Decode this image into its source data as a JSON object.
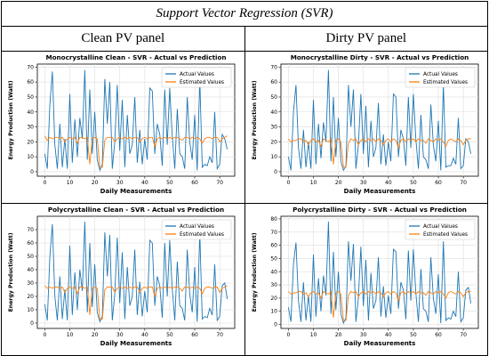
{
  "page": {
    "title": "Support Vector Regression (SVR)",
    "col_headers": [
      "Clean PV panel",
      "Dirty PV panel"
    ]
  },
  "colors": {
    "actual": "#1f77b4",
    "estimated": "#ff7f0e",
    "grid": "#dddddd"
  },
  "chart_data": [
    {
      "type": "line",
      "title": "Monocrystalline Clean  - SVR - Actual vs Prediction",
      "xlabel": "Daily Measurements",
      "ylabel": "Energy Production (Watt)",
      "xlim": [
        -3,
        76
      ],
      "ylim": [
        -3,
        72
      ],
      "xticks": [
        0,
        10,
        20,
        30,
        40,
        50,
        60,
        70
      ],
      "yticks": [
        0,
        10,
        20,
        30,
        40,
        50,
        60,
        70
      ],
      "grid": true,
      "legend": "top-right",
      "series": [
        {
          "name": "Actual Values",
          "values": [
            12,
            2,
            45,
            67,
            18,
            2,
            32,
            3,
            22,
            2,
            52,
            6,
            35,
            10,
            36,
            22,
            68,
            8,
            55,
            12,
            40,
            8,
            1,
            5,
            62,
            32,
            60,
            2,
            20,
            58,
            14,
            48,
            3,
            38,
            12,
            18,
            50,
            6,
            28,
            5,
            22,
            8,
            56,
            54,
            12,
            32,
            25,
            4,
            55,
            18,
            56,
            24,
            2,
            42,
            12,
            10,
            2,
            50,
            20,
            8,
            38,
            1,
            62,
            3,
            5,
            4,
            10,
            6,
            40,
            2,
            5,
            25,
            22,
            15
          ]
        },
        {
          "name": "Estimated Values",
          "values": [
            24,
            21,
            23,
            22,
            23,
            23,
            22,
            23,
            20,
            22,
            23,
            22,
            23,
            19,
            23,
            23,
            22,
            23,
            5,
            22,
            23,
            22,
            3,
            3,
            21,
            23,
            23,
            23,
            20,
            22,
            23,
            22,
            23,
            22,
            23,
            22,
            23,
            23,
            20,
            22,
            23,
            22,
            23,
            23,
            17,
            22,
            23,
            22,
            23,
            22,
            23,
            22,
            23,
            23,
            22,
            21,
            23,
            23,
            22,
            23,
            22,
            23,
            22,
            19,
            22,
            23,
            23,
            22,
            23,
            23,
            20,
            22,
            23,
            24
          ]
        }
      ]
    },
    {
      "type": "line",
      "title": "Monocrystalline Dirty - SVR - Actual vs Prediction",
      "xlabel": "Daily Measurements",
      "ylabel": "Energy Production (Watt)",
      "xlim": [
        -3,
        76
      ],
      "ylim": [
        -3,
        72
      ],
      "xticks": [
        0,
        10,
        20,
        30,
        40,
        50,
        60,
        70
      ],
      "yticks": [
        0,
        10,
        20,
        30,
        40,
        50,
        60,
        70
      ],
      "grid": true,
      "legend": "top-right",
      "series": [
        {
          "name": "Actual Values",
          "values": [
            10,
            1,
            40,
            58,
            16,
            2,
            28,
            3,
            20,
            2,
            48,
            5,
            32,
            9,
            33,
            20,
            68,
            7,
            50,
            10,
            36,
            7,
            1,
            4,
            58,
            30,
            55,
            2,
            18,
            52,
            12,
            44,
            3,
            34,
            10,
            16,
            46,
            5,
            25,
            4,
            20,
            7,
            52,
            50,
            10,
            28,
            22,
            4,
            50,
            16,
            52,
            22,
            2,
            38,
            10,
            8,
            2,
            45,
            18,
            7,
            34,
            1,
            58,
            3,
            4,
            4,
            9,
            5,
            36,
            2,
            4,
            22,
            20,
            12
          ]
        },
        {
          "name": "Estimated Values",
          "values": [
            22,
            20,
            21,
            21,
            22,
            22,
            20,
            21,
            18,
            21,
            22,
            20,
            21,
            17,
            22,
            21,
            20,
            22,
            5,
            21,
            22,
            20,
            3,
            3,
            19,
            22,
            21,
            22,
            18,
            21,
            22,
            20,
            22,
            21,
            22,
            20,
            22,
            21,
            18,
            21,
            22,
            20,
            22,
            21,
            16,
            21,
            22,
            20,
            22,
            21,
            22,
            20,
            22,
            21,
            21,
            19,
            22,
            21,
            20,
            22,
            21,
            22,
            20,
            17,
            21,
            22,
            21,
            20,
            22,
            21,
            18,
            21,
            22,
            22
          ]
        }
      ]
    },
    {
      "type": "line",
      "title": "Polycrystalline Clean - SVR - Actual vs Prediction",
      "xlabel": "Daily Measurements",
      "ylabel": "Energy Production (Watt)",
      "xlim": [
        -3,
        76
      ],
      "ylim": [
        -4,
        80
      ],
      "xticks": [
        0,
        10,
        20,
        30,
        40,
        50,
        60,
        70
      ],
      "yticks": [
        0,
        10,
        20,
        30,
        40,
        50,
        60,
        70
      ],
      "grid": true,
      "legend": "top-right",
      "series": [
        {
          "name": "Actual Values",
          "values": [
            14,
            2,
            50,
            74,
            20,
            2,
            35,
            3,
            25,
            2,
            58,
            6,
            38,
            10,
            40,
            24,
            76,
            8,
            60,
            12,
            44,
            8,
            1,
            5,
            68,
            35,
            66,
            2,
            22,
            64,
            15,
            53,
            3,
            42,
            13,
            20,
            55,
            6,
            31,
            5,
            24,
            8,
            62,
            60,
            13,
            35,
            28,
            4,
            60,
            20,
            62,
            26,
            2,
            46,
            13,
            11,
            2,
            55,
            22,
            8,
            42,
            1,
            68,
            3,
            5,
            4,
            11,
            6,
            44,
            2,
            5,
            28,
            30,
            18
          ]
        },
        {
          "name": "Estimated Values",
          "values": [
            28,
            26,
            27,
            26,
            27,
            27,
            26,
            27,
            23,
            26,
            27,
            26,
            27,
            22,
            27,
            27,
            26,
            27,
            6,
            26,
            27,
            26,
            3,
            3,
            25,
            27,
            27,
            27,
            23,
            26,
            27,
            26,
            27,
            26,
            27,
            26,
            27,
            27,
            23,
            26,
            27,
            26,
            27,
            27,
            20,
            26,
            27,
            26,
            27,
            26,
            27,
            26,
            27,
            27,
            26,
            24,
            27,
            27,
            26,
            27,
            26,
            27,
            26,
            22,
            26,
            27,
            27,
            26,
            27,
            27,
            23,
            26,
            27,
            28
          ]
        }
      ]
    },
    {
      "type": "line",
      "title": "Polycrystalline Dirty - SVR - Actual vs Prediction",
      "xlabel": "Daily Measurements",
      "ylabel": "Energy Production (Watt)",
      "xlim": [
        -3,
        76
      ],
      "ylim": [
        -3,
        82
      ],
      "xticks": [
        0,
        10,
        20,
        30,
        40,
        50,
        60,
        70
      ],
      "yticks": [
        0,
        10,
        20,
        30,
        40,
        50,
        60,
        70,
        80
      ],
      "grid": true,
      "legend": "top-right",
      "series": [
        {
          "name": "Actual Values",
          "values": [
            13,
            2,
            46,
            62,
            18,
            2,
            32,
            3,
            22,
            2,
            53,
            6,
            35,
            10,
            37,
            22,
            78,
            8,
            55,
            11,
            40,
            8,
            1,
            5,
            63,
            33,
            61,
            2,
            20,
            59,
            14,
            49,
            3,
            39,
            12,
            18,
            51,
            6,
            29,
            5,
            22,
            8,
            57,
            55,
            12,
            32,
            26,
            4,
            56,
            18,
            57,
            24,
            2,
            42,
            12,
            10,
            2,
            51,
            20,
            8,
            38,
            1,
            63,
            3,
            5,
            4,
            10,
            6,
            40,
            2,
            5,
            26,
            28,
            16
          ]
        },
        {
          "name": "Estimated Values",
          "values": [
            25,
            23,
            24,
            24,
            25,
            25,
            23,
            24,
            21,
            24,
            25,
            23,
            24,
            20,
            25,
            24,
            23,
            25,
            5,
            24,
            25,
            23,
            3,
            3,
            22,
            25,
            24,
            25,
            21,
            24,
            25,
            23,
            25,
            24,
            25,
            23,
            25,
            24,
            21,
            24,
            25,
            23,
            25,
            24,
            18,
            24,
            25,
            23,
            25,
            24,
            25,
            23,
            25,
            24,
            24,
            22,
            25,
            24,
            23,
            25,
            24,
            25,
            23,
            20,
            24,
            25,
            24,
            23,
            25,
            24,
            21,
            24,
            25,
            25
          ]
        }
      ]
    }
  ]
}
